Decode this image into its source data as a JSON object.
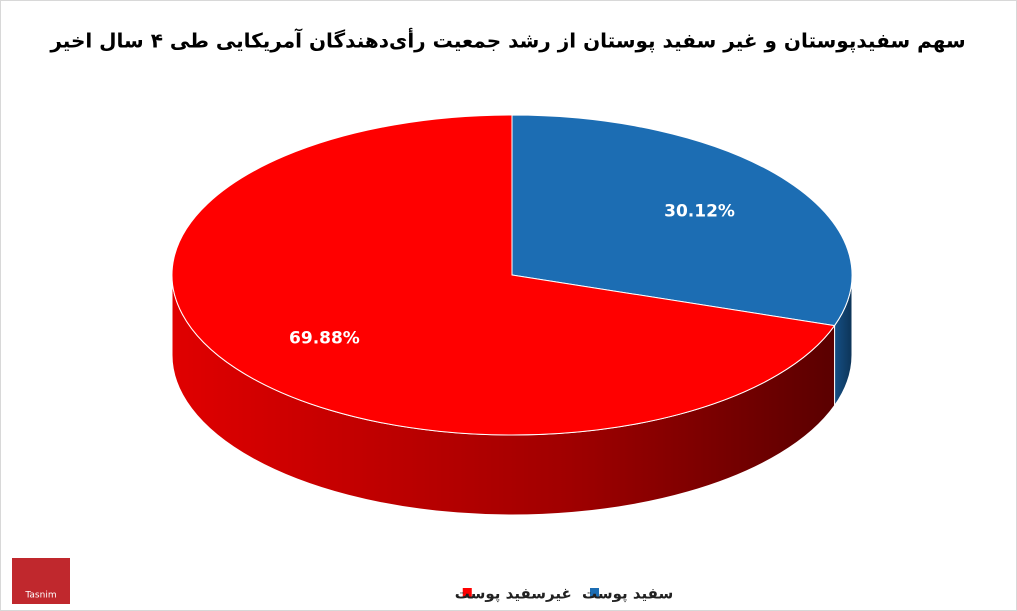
{
  "chart_data": {
    "type": "pie",
    "title": "سهم سفیدپوستان و غیر سفید پوستان از رشد جمعیت رأی‌دهندگان آمریکایی طی ۴ سال اخیر",
    "categories": [
      "سفید پوست",
      "غیرسفید پوست"
    ],
    "values": [
      30.12,
      69.88
    ],
    "value_labels": [
      "30.12%",
      "69.88%"
    ],
    "colors": [
      "#1c6db3",
      "#ff0000"
    ],
    "legend": "bottom"
  },
  "logo": "Tasnim"
}
